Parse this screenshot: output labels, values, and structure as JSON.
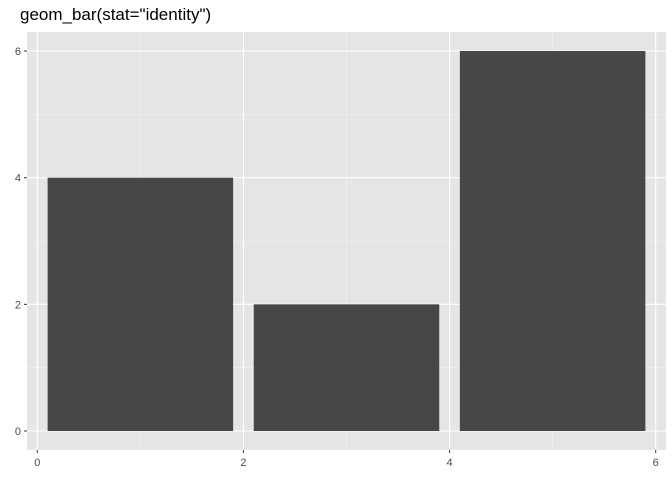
{
  "chart_data": {
    "type": "bar",
    "title": "geom_bar(stat=\"identity\")",
    "xlabel": "",
    "ylabel": "",
    "bars": [
      {
        "x": 1,
        "y": 4
      },
      {
        "x": 3,
        "y": 2
      },
      {
        "x": 5,
        "y": 6
      }
    ],
    "bar_width": 1.8,
    "xlim": [
      -0.1,
      6.1
    ],
    "ylim": [
      -0.3,
      6.3
    ],
    "x_ticks": [
      0,
      2,
      4,
      6
    ],
    "y_ticks": [
      0,
      2,
      4,
      6
    ],
    "x_minor": [
      1,
      3,
      5
    ],
    "y_minor": [
      1,
      3,
      5
    ],
    "grid": true,
    "colors": {
      "bar": "#474747",
      "panel": "#e5e5e5",
      "grid_major": "#ffffff",
      "grid_minor": "#f2f2f2",
      "tick": "#333333"
    }
  }
}
